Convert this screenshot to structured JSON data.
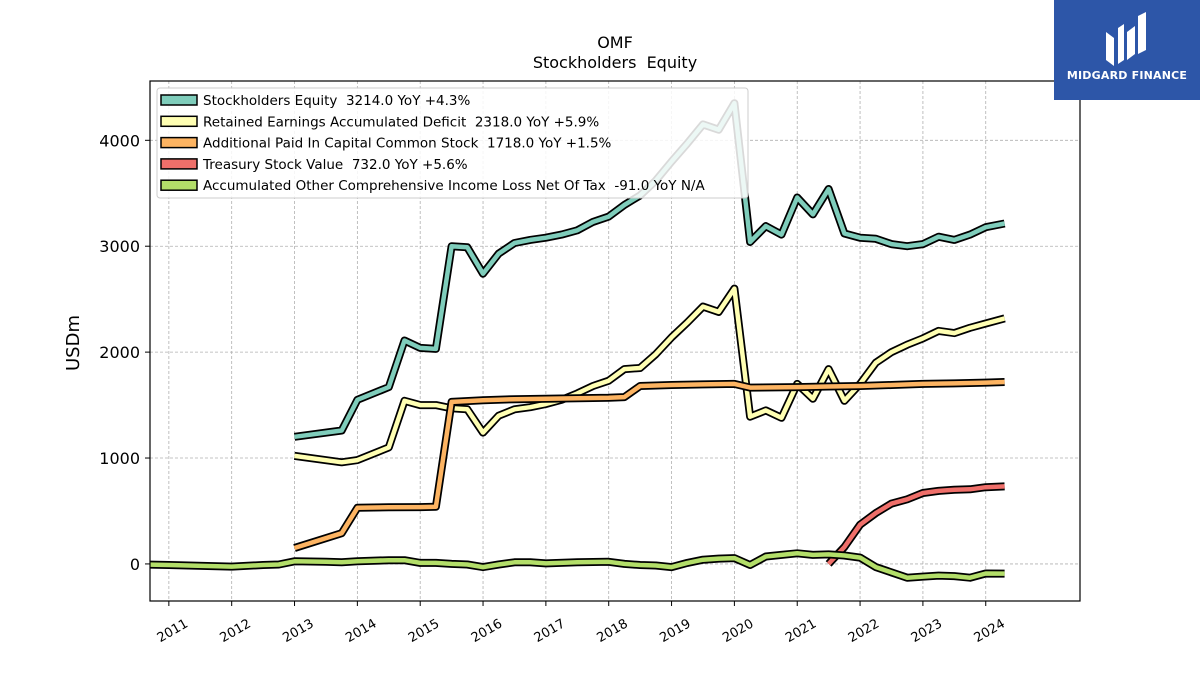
{
  "logo": {
    "text": "MIDGARD FINANCE"
  },
  "chart_data": {
    "type": "line",
    "title": "OMF",
    "subtitle": "Stockholders  Equity",
    "ylabel": "USDm",
    "xlabel": "",
    "xlim": [
      2010.7,
      2025.5
    ],
    "ylim": [
      -350,
      4560
    ],
    "yticks": [
      0,
      1000,
      2000,
      3000,
      4000
    ],
    "xticks": [
      "2011",
      "2012",
      "2013",
      "2014",
      "2015",
      "2016",
      "2017",
      "2018",
      "2019",
      "2020",
      "2021",
      "2022",
      "2023",
      "2024"
    ],
    "grid": true,
    "legend_position": "top-left",
    "series": [
      {
        "name": "Stockholders Equity",
        "legend": "Stockholders Equity  3214.0 YoY +4.3%",
        "color": "#7fcdbb",
        "points": [
          [
            2013.0,
            1200
          ],
          [
            2013.75,
            1260
          ],
          [
            2014.0,
            1550
          ],
          [
            2014.5,
            1670
          ],
          [
            2014.75,
            2110
          ],
          [
            2015.0,
            2040
          ],
          [
            2015.25,
            2030
          ],
          [
            2015.5,
            3000
          ],
          [
            2015.75,
            2990
          ],
          [
            2016.0,
            2740
          ],
          [
            2016.25,
            2930
          ],
          [
            2016.5,
            3030
          ],
          [
            2016.75,
            3060
          ],
          [
            2017.0,
            3080
          ],
          [
            2017.25,
            3110
          ],
          [
            2017.5,
            3150
          ],
          [
            2017.75,
            3230
          ],
          [
            2018.0,
            3280
          ],
          [
            2018.25,
            3390
          ],
          [
            2018.5,
            3480
          ],
          [
            2018.75,
            3620
          ],
          [
            2019.0,
            3800
          ],
          [
            2019.25,
            3970
          ],
          [
            2019.5,
            4150
          ],
          [
            2019.75,
            4100
          ],
          [
            2020.0,
            4350
          ],
          [
            2020.25,
            3040
          ],
          [
            2020.5,
            3190
          ],
          [
            2020.75,
            3110
          ],
          [
            2021.0,
            3460
          ],
          [
            2021.25,
            3300
          ],
          [
            2021.5,
            3540
          ],
          [
            2021.75,
            3120
          ],
          [
            2022.0,
            3080
          ],
          [
            2022.25,
            3070
          ],
          [
            2022.5,
            3020
          ],
          [
            2022.75,
            3000
          ],
          [
            2023.0,
            3020
          ],
          [
            2023.25,
            3090
          ],
          [
            2023.5,
            3060
          ],
          [
            2023.75,
            3110
          ],
          [
            2024.0,
            3180
          ],
          [
            2024.3,
            3214
          ]
        ]
      },
      {
        "name": "Retained Earnings Accumulated Deficit",
        "legend": "Retained Earnings Accumulated Deficit  2318.0 YoY +5.9%",
        "color": "#ffffb3",
        "points": [
          [
            2013.0,
            1020
          ],
          [
            2013.75,
            960
          ],
          [
            2014.0,
            980
          ],
          [
            2014.5,
            1100
          ],
          [
            2014.75,
            1540
          ],
          [
            2015.0,
            1500
          ],
          [
            2015.25,
            1500
          ],
          [
            2015.5,
            1470
          ],
          [
            2015.75,
            1460
          ],
          [
            2016.0,
            1240
          ],
          [
            2016.25,
            1400
          ],
          [
            2016.5,
            1460
          ],
          [
            2016.75,
            1480
          ],
          [
            2017.0,
            1510
          ],
          [
            2017.25,
            1550
          ],
          [
            2017.5,
            1610
          ],
          [
            2017.75,
            1680
          ],
          [
            2018.0,
            1730
          ],
          [
            2018.25,
            1840
          ],
          [
            2018.5,
            1850
          ],
          [
            2018.75,
            1980
          ],
          [
            2019.0,
            2140
          ],
          [
            2019.25,
            2280
          ],
          [
            2019.5,
            2430
          ],
          [
            2019.75,
            2380
          ],
          [
            2020.0,
            2600
          ],
          [
            2020.25,
            1390
          ],
          [
            2020.5,
            1450
          ],
          [
            2020.75,
            1380
          ],
          [
            2021.0,
            1700
          ],
          [
            2021.25,
            1560
          ],
          [
            2021.5,
            1840
          ],
          [
            2021.75,
            1540
          ],
          [
            2022.0,
            1700
          ],
          [
            2022.25,
            1900
          ],
          [
            2022.5,
            2000
          ],
          [
            2022.75,
            2070
          ],
          [
            2023.0,
            2130
          ],
          [
            2023.25,
            2200
          ],
          [
            2023.5,
            2180
          ],
          [
            2023.75,
            2230
          ],
          [
            2024.0,
            2270
          ],
          [
            2024.3,
            2318
          ]
        ]
      },
      {
        "name": "Additional Paid In Capital Common Stock",
        "legend": "Additional Paid In Capital Common Stock  1718.0 YoY +1.5%",
        "color": "#fdb462",
        "points": [
          [
            2013.0,
            150
          ],
          [
            2013.75,
            290
          ],
          [
            2014.0,
            530
          ],
          [
            2014.5,
            535
          ],
          [
            2015.0,
            537
          ],
          [
            2015.25,
            540
          ],
          [
            2015.5,
            1530
          ],
          [
            2016.0,
            1545
          ],
          [
            2016.5,
            1555
          ],
          [
            2017.0,
            1560
          ],
          [
            2017.5,
            1565
          ],
          [
            2018.0,
            1570
          ],
          [
            2018.25,
            1575
          ],
          [
            2018.5,
            1680
          ],
          [
            2019.0,
            1690
          ],
          [
            2019.5,
            1695
          ],
          [
            2020.0,
            1700
          ],
          [
            2020.25,
            1665
          ],
          [
            2021.0,
            1670
          ],
          [
            2021.5,
            1675
          ],
          [
            2022.0,
            1680
          ],
          [
            2022.5,
            1690
          ],
          [
            2023.0,
            1700
          ],
          [
            2023.5,
            1705
          ],
          [
            2024.0,
            1712
          ],
          [
            2024.3,
            1718
          ]
        ]
      },
      {
        "name": "Treasury Stock Value",
        "legend": "Treasury Stock Value  732.0 YoY +5.6%",
        "color": "#ef6f6a",
        "points": [
          [
            2021.5,
            0
          ],
          [
            2021.75,
            160
          ],
          [
            2022.0,
            370
          ],
          [
            2022.25,
            480
          ],
          [
            2022.5,
            570
          ],
          [
            2022.75,
            610
          ],
          [
            2023.0,
            670
          ],
          [
            2023.25,
            690
          ],
          [
            2023.5,
            700
          ],
          [
            2023.75,
            705
          ],
          [
            2024.0,
            725
          ],
          [
            2024.3,
            732
          ]
        ]
      },
      {
        "name": "Accumulated Other Comprehensive Income Loss Net Of Tax",
        "legend": "Accumulated Other Comprehensive Income Loss Net Of Tax  -91.0 YoY N/A",
        "color": "#b3de69",
        "points": [
          [
            2010.0,
            0
          ],
          [
            2011.0,
            -10
          ],
          [
            2012.0,
            -25
          ],
          [
            2012.5,
            -10
          ],
          [
            2012.75,
            -5
          ],
          [
            2013.0,
            25
          ],
          [
            2013.5,
            20
          ],
          [
            2013.75,
            15
          ],
          [
            2014.0,
            25
          ],
          [
            2014.5,
            35
          ],
          [
            2014.75,
            35
          ],
          [
            2015.0,
            10
          ],
          [
            2015.25,
            10
          ],
          [
            2015.5,
            0
          ],
          [
            2015.75,
            -5
          ],
          [
            2016.0,
            -30
          ],
          [
            2016.25,
            -5
          ],
          [
            2016.5,
            15
          ],
          [
            2016.75,
            15
          ],
          [
            2017.0,
            5
          ],
          [
            2017.5,
            15
          ],
          [
            2018.0,
            20
          ],
          [
            2018.25,
            0
          ],
          [
            2018.5,
            -10
          ],
          [
            2018.75,
            -15
          ],
          [
            2019.0,
            -30
          ],
          [
            2019.25,
            10
          ],
          [
            2019.5,
            40
          ],
          [
            2019.75,
            50
          ],
          [
            2020.0,
            55
          ],
          [
            2020.25,
            -10
          ],
          [
            2020.5,
            70
          ],
          [
            2020.75,
            85
          ],
          [
            2021.0,
            100
          ],
          [
            2021.25,
            85
          ],
          [
            2021.5,
            90
          ],
          [
            2021.75,
            80
          ],
          [
            2022.0,
            60
          ],
          [
            2022.25,
            -30
          ],
          [
            2022.5,
            -80
          ],
          [
            2022.75,
            -130
          ],
          [
            2023.0,
            -120
          ],
          [
            2023.25,
            -110
          ],
          [
            2023.5,
            -115
          ],
          [
            2023.75,
            -130
          ],
          [
            2024.0,
            -90
          ],
          [
            2024.3,
            -91
          ]
        ]
      }
    ]
  }
}
